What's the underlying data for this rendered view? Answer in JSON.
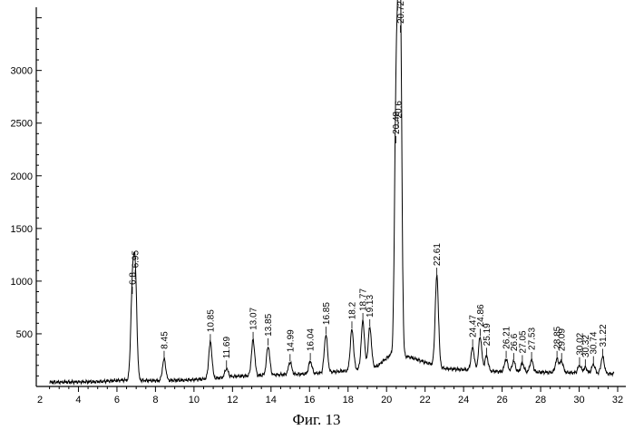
{
  "caption": "Фиг. 13",
  "chart_data": {
    "type": "line",
    "title": "",
    "xlabel": "",
    "ylabel": "",
    "xlim": [
      2,
      32
    ],
    "ylim": [
      0,
      3600
    ],
    "grid": false,
    "x_ticks": [
      {
        "value": 2,
        "label": "2"
      },
      {
        "value": 4,
        "label": "4"
      },
      {
        "value": 6,
        "label": "6"
      },
      {
        "value": 8,
        "label": "8"
      },
      {
        "value": 10,
        "label": "10"
      },
      {
        "value": 12,
        "label": "12"
      },
      {
        "value": 14,
        "label": "14"
      },
      {
        "value": 16,
        "label": "16"
      },
      {
        "value": 18,
        "label": "18"
      },
      {
        "value": 20,
        "label": "20"
      },
      {
        "value": 22,
        "label": "22"
      },
      {
        "value": 24,
        "label": "24"
      },
      {
        "value": 26,
        "label": "26"
      },
      {
        "value": 28,
        "label": "28"
      },
      {
        "value": 30,
        "label": "30"
      },
      {
        "value": 32,
        "label": "32"
      }
    ],
    "y_ticks": [
      {
        "value": 500,
        "label": "500"
      },
      {
        "value": 1000,
        "label": "1000"
      },
      {
        "value": 1500,
        "label": "1500"
      },
      {
        "value": 2000,
        "label": "2000"
      },
      {
        "value": 2500,
        "label": "2500"
      },
      {
        "value": 3000,
        "label": "3000"
      }
    ],
    "baseline": [
      [
        2.5,
        40
      ],
      [
        5,
        45
      ],
      [
        6.3,
        60
      ],
      [
        8,
        55
      ],
      [
        9.5,
        60
      ],
      [
        11,
        75
      ],
      [
        12,
        95
      ],
      [
        14,
        110
      ],
      [
        16,
        120
      ],
      [
        18,
        150
      ],
      [
        19.5,
        190
      ],
      [
        20.2,
        300
      ],
      [
        21.2,
        280
      ],
      [
        22,
        230
      ],
      [
        23,
        170
      ],
      [
        24,
        160
      ],
      [
        26,
        140
      ],
      [
        28,
        135
      ],
      [
        30,
        130
      ],
      [
        31.8,
        120
      ]
    ],
    "peaks": [
      {
        "x": 6.8,
        "y": 870,
        "label": "6.8"
      },
      {
        "x": 6.95,
        "y": 1030,
        "label": "6.95"
      },
      {
        "x": 8.45,
        "y": 260,
        "label": "8.45"
      },
      {
        "x": 10.85,
        "y": 420,
        "label": "10.85"
      },
      {
        "x": 11.69,
        "y": 170,
        "label": "11.69"
      },
      {
        "x": 13.07,
        "y": 440,
        "label": "13.07"
      },
      {
        "x": 13.85,
        "y": 380,
        "label": "13.85"
      },
      {
        "x": 14.99,
        "y": 230,
        "label": "14.99"
      },
      {
        "x": 16.04,
        "y": 240,
        "label": "16.04"
      },
      {
        "x": 16.85,
        "y": 490,
        "label": "16.85"
      },
      {
        "x": 18.2,
        "y": 540,
        "label": "18.2"
      },
      {
        "x": 18.77,
        "y": 620,
        "label": "18.77"
      },
      {
        "x": 19.13,
        "y": 560,
        "label": "19.13"
      },
      {
        "x": 20.48,
        "y": 2300,
        "label": "20.48"
      },
      {
        "x": 20.6,
        "y": 2450,
        "label": "20.6"
      },
      {
        "x": 20.72,
        "y": 3350,
        "label": "20.72"
      },
      {
        "x": 22.61,
        "y": 1050,
        "label": "22.61"
      },
      {
        "x": 24.47,
        "y": 370,
        "label": "24.47"
      },
      {
        "x": 24.86,
        "y": 470,
        "label": "24.86"
      },
      {
        "x": 25.19,
        "y": 290,
        "label": "25.19"
      },
      {
        "x": 26.21,
        "y": 260,
        "label": "26.21"
      },
      {
        "x": 26.6,
        "y": 240,
        "label": "26.6"
      },
      {
        "x": 27.05,
        "y": 220,
        "label": "27.05"
      },
      {
        "x": 27.53,
        "y": 250,
        "label": "27.53"
      },
      {
        "x": 28.85,
        "y": 260,
        "label": "28.85"
      },
      {
        "x": 29.09,
        "y": 240,
        "label": "29.09"
      },
      {
        "x": 30.02,
        "y": 200,
        "label": "30.02"
      },
      {
        "x": 30.32,
        "y": 180,
        "label": "30.32"
      },
      {
        "x": 30.74,
        "y": 210,
        "label": "30.74"
      },
      {
        "x": 31.22,
        "y": 280,
        "label": "31.22"
      }
    ]
  }
}
